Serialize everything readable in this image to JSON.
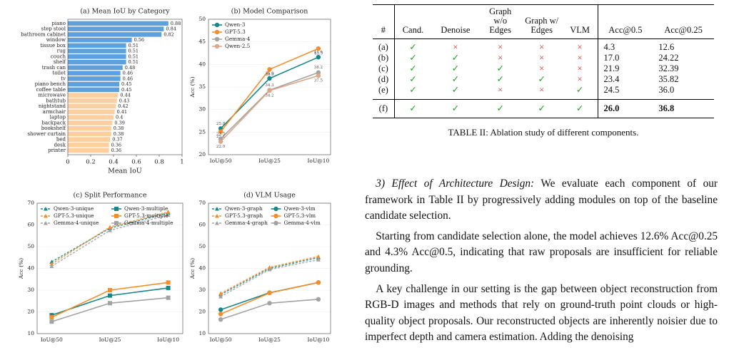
{
  "chart_data": [
    {
      "type": "barh",
      "title": "(a) Mean IoU by Category",
      "xlabel": "Mean IoU",
      "categories": [
        "piano",
        "step stool",
        "bathroom cabinet",
        "window",
        "tissue box",
        "rug",
        "couch",
        "shelf",
        "trash can",
        "toilet",
        "tv",
        "piano bench",
        "coffee table",
        "microwave",
        "bathtub",
        "nightstand",
        "armchair",
        "laptop",
        "backpack",
        "bookshelf",
        "shower curtain",
        "bed",
        "desk",
        "printer"
      ],
      "values": [
        0.88,
        0.84,
        0.82,
        0.56,
        0.51,
        0.51,
        0.51,
        0.51,
        0.48,
        0.46,
        0.46,
        0.45,
        0.45,
        0.44,
        0.43,
        0.42,
        0.41,
        0.4,
        0.39,
        0.38,
        0.38,
        0.37,
        0.36,
        0.36
      ],
      "colors": [
        "#5da0dc",
        "#5da0dc",
        "#5da0dc",
        "#5da0dc",
        "#5da0dc",
        "#5da0dc",
        "#5da0dc",
        "#5da0dc",
        "#5da0dc",
        "#5da0dc",
        "#5da0dc",
        "#5da0dc",
        "#5da0dc",
        "#fdcf9e",
        "#fdcf9e",
        "#fdcf9e",
        "#fdcf9e",
        "#fdcf9e",
        "#fdcf9e",
        "#fdcf9e",
        "#fdcf9e",
        "#fdcf9e",
        "#fdcf9e",
        "#fdcf9e"
      ],
      "xlim": [
        0,
        1
      ],
      "xticks": [
        0,
        0.2,
        0.4,
        0.6,
        0.8,
        1
      ],
      "grid": false
    },
    {
      "type": "line",
      "title": "(b) Model Comparison",
      "ylabel": "Acc (%)",
      "categories": [
        "IoU@50",
        "IoU@25",
        "IoU@10"
      ],
      "series": [
        {
          "name": "Qwen-3",
          "color": "#17878a",
          "marker": "circle",
          "linestyle": "solid",
          "values": [
            25.8,
            36.9,
            41.6
          ]
        },
        {
          "name": "GPT-5.3",
          "color": "#f58d2c",
          "marker": "circle",
          "linestyle": "solid",
          "values": [
            25.1,
            38.9,
            43.5
          ]
        },
        {
          "name": "Gemma-4",
          "color": "#a3a3a3",
          "marker": "circle",
          "linestyle": "solid",
          "values": [
            23.5,
            34.3,
            38.2
          ]
        },
        {
          "name": "Qwen-2.5",
          "color": "#dba789",
          "marker": "circle",
          "linestyle": "solid",
          "values": [
            22.9,
            34.2,
            37.5
          ]
        }
      ],
      "data_labels": true,
      "ylim": [
        20,
        50
      ],
      "yticks": [
        20,
        25,
        30,
        35,
        40,
        45,
        50
      ],
      "grid": true,
      "legend": "upper left",
      "legend_columns": 1
    },
    {
      "type": "line",
      "title": "(c) Split Performance",
      "ylabel": "Acc (%)",
      "categories": [
        "IoU@50",
        "IoU@25",
        "IoU@10"
      ],
      "series": [
        {
          "name": "Qwen-3-unique",
          "color": "#17878a",
          "marker": "triangle",
          "linestyle": "dashed",
          "values": [
            43,
            58.5,
            65.5
          ]
        },
        {
          "name": "GPT-5.3-unique",
          "color": "#f58d2c",
          "marker": "triangle",
          "linestyle": "dashed",
          "values": [
            42,
            59,
            66
          ]
        },
        {
          "name": "Gemma-4-unique",
          "color": "#a3a3a3",
          "marker": "triangle",
          "linestyle": "dashed",
          "values": [
            41,
            57.5,
            64.5
          ]
        },
        {
          "name": "Qwen-3-multiple",
          "color": "#17878a",
          "marker": "square",
          "linestyle": "solid",
          "values": [
            18.5,
            27.5,
            31
          ]
        },
        {
          "name": "GPT-5.3-multiple",
          "color": "#f58d2c",
          "marker": "square",
          "linestyle": "solid",
          "values": [
            17.5,
            30,
            33.5
          ]
        },
        {
          "name": "Gemma-4-multiple",
          "color": "#a3a3a3",
          "marker": "square",
          "linestyle": "solid",
          "values": [
            15.5,
            24,
            26.5
          ]
        }
      ],
      "data_labels": false,
      "ylim": [
        10,
        70
      ],
      "yticks": [
        10,
        20,
        30,
        40,
        50,
        60,
        70
      ],
      "grid": true,
      "legend": "upper left",
      "legend_columns": 2
    },
    {
      "type": "line",
      "title": "(d) VLM Usage",
      "ylabel": "Acc (%)",
      "categories": [
        "IoU@50",
        "IoU@25",
        "IoU@10"
      ],
      "series": [
        {
          "name": "Qwen-3-graph",
          "color": "#17878a",
          "marker": "triangle",
          "linestyle": "dashed",
          "values": [
            28,
            40,
            45
          ]
        },
        {
          "name": "GPT-5.3-graph",
          "color": "#f58d2c",
          "marker": "triangle",
          "linestyle": "dashed",
          "values": [
            28.5,
            40.5,
            45.5
          ]
        },
        {
          "name": "Gemma-4-graph",
          "color": "#a3a3a3",
          "marker": "triangle",
          "linestyle": "dashed",
          "values": [
            27,
            39.5,
            44
          ]
        },
        {
          "name": "Qwen-3-vlm",
          "color": "#17878a",
          "marker": "circle",
          "linestyle": "solid",
          "values": [
            21,
            28.8,
            33.5
          ]
        },
        {
          "name": "GPT-5.3-vlm",
          "color": "#f58d2c",
          "marker": "circle",
          "linestyle": "solid",
          "values": [
            19,
            28.7,
            33.5
          ]
        },
        {
          "name": "Gemma-4-vlm",
          "color": "#a3a3a3",
          "marker": "circle",
          "linestyle": "solid",
          "values": [
            16.5,
            24,
            25.8
          ]
        }
      ],
      "data_labels": false,
      "ylim": [
        10,
        70
      ],
      "yticks": [
        10,
        20,
        30,
        40,
        50,
        60,
        70
      ],
      "grid": true,
      "legend": "upper left",
      "legend_columns": 2
    }
  ],
  "table": {
    "header": [
      "#",
      "Cand.",
      "Denoise",
      "Graph w/o Edges",
      "Graph w/ Edges",
      "VLM",
      "Acc@0.5",
      "Acc@0.25"
    ],
    "rows": [
      [
        "(a)",
        "✓",
        "×",
        "×",
        "×",
        "×",
        "4.3",
        "12.6"
      ],
      [
        "(b)",
        "✓",
        "✓",
        "×",
        "×",
        "×",
        "17.0",
        "24.22"
      ],
      [
        "(c)",
        "✓",
        "✓",
        "✓",
        "×",
        "×",
        "21.9",
        "32.39"
      ],
      [
        "(d)",
        "✓",
        "✓",
        "✓",
        "✓",
        "×",
        "23.4",
        "35.82"
      ],
      [
        "(e)",
        "✓",
        "✓",
        "×",
        "×",
        "✓",
        "24.5",
        "36.0"
      ],
      [
        "(f)",
        "✓",
        "✓",
        "✓",
        "✓",
        "✓",
        "26.0",
        "36.8"
      ]
    ],
    "caption": "TABLE II: Ablation study of different components."
  },
  "section": {
    "heading": "3) Effect of Architecture Design:",
    "paragraphs": [
      "We evaluate each component of our framework in Table II by progressively adding modules on top of the baseline candidate selection.",
      "Starting from candidate selection alone, the model achieves 12.6% Acc@0.25 and 4.3% Acc@0.5, indicating that raw proposals are insufficient for reliable grounding.",
      "A key challenge in our setting is the gap between object reconstruction from RGB-D images and methods that rely on ground-truth point clouds or high-quality object proposals. Our reconstructed objects are inherently noisier due to imperfect depth and camera estimation. Adding the denoising"
    ]
  }
}
